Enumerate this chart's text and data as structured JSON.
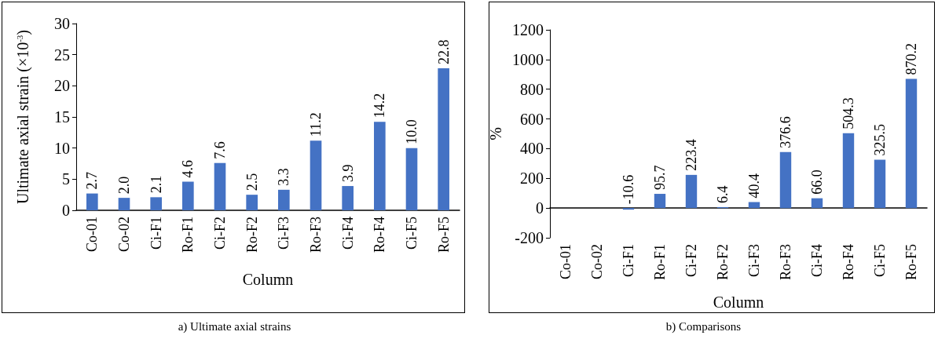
{
  "chart_data": [
    {
      "type": "bar",
      "title": "a) Ultimate axial strains",
      "xlabel": "Column",
      "ylabel": "Ultimate axial strain (×10$^{-3}$)",
      "categories": [
        "Co-01",
        "Co-02",
        "Ci-F1",
        "Ro-F1",
        "Ci-F2",
        "Ro-F2",
        "Ci-F3",
        "Ro-F3",
        "Ci-F4",
        "Ro-F4",
        "Ci-F5",
        "Ro-F5"
      ],
      "values": [
        2.7,
        2.0,
        2.1,
        4.6,
        7.6,
        2.5,
        3.3,
        11.2,
        3.9,
        14.2,
        10.0,
        22.8
      ],
      "value_labels": [
        "2.7",
        "2.0",
        "2.1",
        "4.6",
        "7.6",
        "2.5",
        "3.3",
        "11.2",
        "3.9",
        "14.2",
        "10.0",
        "22.8"
      ],
      "color": "#4472c4",
      "ylim": [
        0,
        30
      ],
      "yticks": [
        0,
        5,
        10,
        15,
        20,
        25,
        30
      ],
      "grid": false
    },
    {
      "type": "bar",
      "title": "b) Comparisons",
      "xlabel": "Column",
      "ylabel": "%",
      "categories": [
        "Co-01",
        "Co-02",
        "Ci-F1",
        "Ro-F1",
        "Ci-F2",
        "Ro-F2",
        "Ci-F3",
        "Ro-F3",
        "Ci-F4",
        "Ro-F4",
        "Ci-F5",
        "Ro-F5"
      ],
      "values": [
        null,
        null,
        -10.6,
        95.7,
        223.4,
        6.4,
        40.4,
        376.6,
        66.0,
        504.3,
        325.5,
        870.2
      ],
      "value_labels": [
        null,
        null,
        "-10.6",
        "95.7",
        "223.4",
        "6.4",
        "40.4",
        "376.6",
        "66.0",
        "504.3",
        "325.5",
        "870.2"
      ],
      "color": "#4472c4",
      "ylim": [
        -200,
        1200
      ],
      "yticks": [
        -200,
        0,
        200,
        400,
        600,
        800,
        1000,
        1200
      ],
      "grid": false
    }
  ]
}
